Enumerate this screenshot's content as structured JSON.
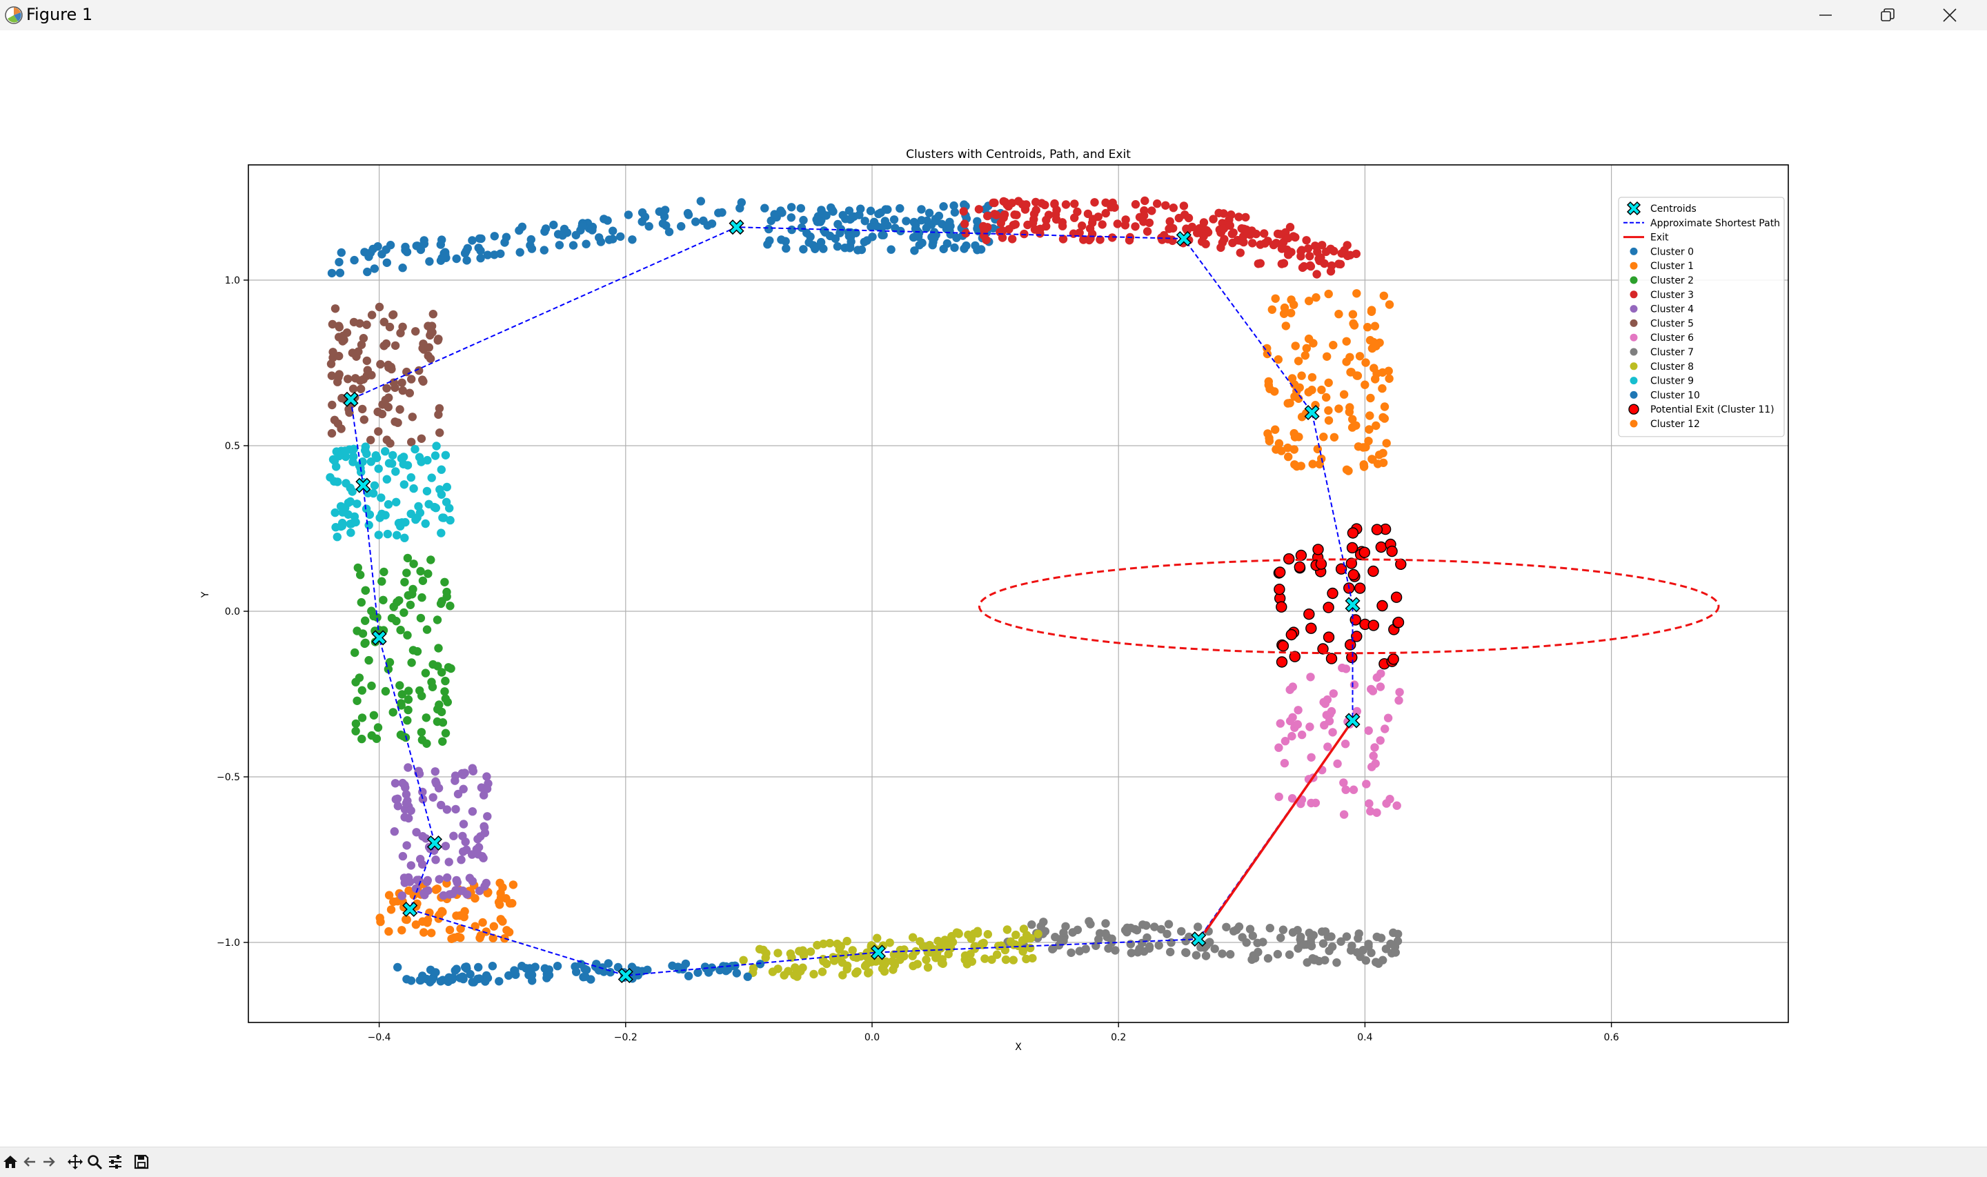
{
  "window": {
    "title": "Figure 1"
  },
  "toolbar": {
    "buttons": [
      {
        "icon": "home-icon"
      },
      {
        "icon": "back-icon"
      },
      {
        "icon": "forward-icon"
      },
      {
        "icon": "pan-icon"
      },
      {
        "icon": "zoom-icon"
      },
      {
        "icon": "configure-subplots-icon"
      },
      {
        "icon": "save-icon"
      }
    ]
  },
  "chart_data": {
    "type": "scatter",
    "title": "Clusters with Centroids, Path, and Exit",
    "xlabel": "X",
    "ylabel": "Y",
    "xlim": [
      -0.5,
      0.75
    ],
    "ylim": [
      -1.25,
      1.35
    ],
    "xticks": [
      -0.4,
      -0.2,
      0.0,
      0.2,
      0.4,
      0.6
    ],
    "xtick_labels": [
      "−0.4",
      "−0.2",
      "0.0",
      "0.2",
      "0.4",
      "0.6"
    ],
    "yticks": [
      -1.0,
      -0.5,
      0.0,
      0.5,
      1.0
    ],
    "ytick_labels": [
      "−1.0",
      "−0.5",
      "0.0",
      "0.5",
      "1.0"
    ],
    "grid": true,
    "legend_position": "top-right",
    "series": [
      {
        "name": "Cluster 0",
        "color": "#1f77b4",
        "x_range": [
          -0.08,
          0.1
        ],
        "y_range": [
          1.07,
          1.23
        ],
        "count": 160
      },
      {
        "name": "Cluster 1",
        "color": "#ff7f0e",
        "x_range": [
          -0.4,
          -0.29
        ],
        "y_range": [
          -0.99,
          -0.82
        ],
        "count": 80
      },
      {
        "name": "Cluster 2",
        "color": "#2ca02c",
        "x_range": [
          -0.42,
          -0.34
        ],
        "y_range": [
          -0.4,
          0.18
        ],
        "count": 110
      },
      {
        "name": "Cluster 3",
        "color": "#d62728",
        "x_range": [
          0.08,
          0.38
        ],
        "y_range": [
          0.97,
          1.23
        ],
        "count": 220
      },
      {
        "name": "Cluster 4",
        "color": "#9467bd",
        "x_range": [
          -0.39,
          -0.31
        ],
        "y_range": [
          -0.86,
          -0.47
        ],
        "count": 110
      },
      {
        "name": "Cluster 5",
        "color": "#8c564b",
        "x_range": [
          -0.44,
          -0.35
        ],
        "y_range": [
          0.5,
          0.92
        ],
        "count": 110
      },
      {
        "name": "Cluster 6",
        "color": "#e377c2",
        "x_range": [
          0.33,
          0.43
        ],
        "y_range": [
          -0.62,
          -0.17
        ],
        "count": 70
      },
      {
        "name": "Cluster 7",
        "color": "#7f7f7f",
        "x_range": [
          0.12,
          0.43
        ],
        "y_range": [
          -1.08,
          -0.79
        ],
        "count": 150
      },
      {
        "name": "Cluster 8",
        "color": "#bcbd22",
        "x_range": [
          -0.1,
          0.13
        ],
        "y_range": [
          -1.12,
          -0.94
        ],
        "count": 160
      },
      {
        "name": "Cluster 9",
        "color": "#17becf",
        "x_range": [
          -0.44,
          -0.34
        ],
        "y_range": [
          0.22,
          0.5
        ],
        "count": 110
      },
      {
        "name": "Cluster 10",
        "color": "#1f77b4",
        "x_range": [
          -0.43,
          -0.1
        ],
        "y_range": [
          -1.12,
          1.23
        ],
        "count": 220
      },
      {
        "name": "Potential Exit (Cluster 11)",
        "color": "#ff0000",
        "x_range": [
          0.33,
          0.43
        ],
        "y_range": [
          -0.17,
          0.27
        ],
        "count": 60
      },
      {
        "name": "Cluster 12",
        "color": "#ff7f0e",
        "x_range": [
          0.32,
          0.42
        ],
        "y_range": [
          0.42,
          0.96
        ],
        "count": 130
      }
    ],
    "centroids": {
      "name": "Centroids",
      "color": "#00e5ee",
      "points": [
        {
          "x": -0.11,
          "y": 1.16
        },
        {
          "x": 0.253,
          "y": 1.125
        },
        {
          "x": 0.357,
          "y": 0.6
        },
        {
          "x": 0.39,
          "y": 0.02
        },
        {
          "x": 0.39,
          "y": -0.33
        },
        {
          "x": 0.265,
          "y": -0.99
        },
        {
          "x": 0.005,
          "y": -1.03
        },
        {
          "x": -0.2,
          "y": -1.1
        },
        {
          "x": -0.375,
          "y": -0.9
        },
        {
          "x": -0.355,
          "y": -0.7
        },
        {
          "x": -0.4,
          "y": -0.08
        },
        {
          "x": -0.413,
          "y": 0.38
        },
        {
          "x": -0.423,
          "y": 0.64
        }
      ]
    },
    "path": {
      "name": "Approximate Shortest Path",
      "color": "#0000ff",
      "points": [
        {
          "x": -0.423,
          "y": 0.64
        },
        {
          "x": -0.413,
          "y": 0.38
        },
        {
          "x": -0.4,
          "y": -0.08
        },
        {
          "x": -0.355,
          "y": -0.7
        },
        {
          "x": -0.375,
          "y": -0.9
        },
        {
          "x": -0.2,
          "y": -1.1
        },
        {
          "x": 0.005,
          "y": -1.03
        },
        {
          "x": 0.265,
          "y": -0.99
        },
        {
          "x": 0.39,
          "y": -0.33
        },
        {
          "x": 0.39,
          "y": 0.02
        },
        {
          "x": 0.357,
          "y": 0.6
        },
        {
          "x": 0.253,
          "y": 1.125
        },
        {
          "x": -0.11,
          "y": 1.16
        },
        {
          "x": -0.423,
          "y": 0.64
        }
      ]
    },
    "exit": {
      "name": "Exit",
      "color": "#ee1111",
      "from": {
        "x": 0.39,
        "y": -0.33
      },
      "to": {
        "x": 0.27,
        "y": -0.97
      }
    },
    "exit_region": {
      "type": "ellipse",
      "center": {
        "x": 0.387,
        "y": 0.015
      },
      "half_width": 0.3,
      "half_height": 0.295,
      "color": "#ee1111"
    },
    "legend": [
      {
        "label": "Centroids",
        "marker": "x-marker",
        "color": "#00e5ee"
      },
      {
        "label": "Approximate Shortest Path",
        "marker": "dashed-line",
        "color": "#0000ff"
      },
      {
        "label": "Exit",
        "marker": "solid-line",
        "color": "#ee1111"
      },
      {
        "label": "Cluster 0",
        "marker": "dot",
        "color": "#1f77b4"
      },
      {
        "label": "Cluster 1",
        "marker": "dot",
        "color": "#ff7f0e"
      },
      {
        "label": "Cluster 2",
        "marker": "dot",
        "color": "#2ca02c"
      },
      {
        "label": "Cluster 3",
        "marker": "dot",
        "color": "#d62728"
      },
      {
        "label": "Cluster 4",
        "marker": "dot",
        "color": "#9467bd"
      },
      {
        "label": "Cluster 5",
        "marker": "dot",
        "color": "#8c564b"
      },
      {
        "label": "Cluster 6",
        "marker": "dot",
        "color": "#e377c2"
      },
      {
        "label": "Cluster 7",
        "marker": "dot",
        "color": "#7f7f7f"
      },
      {
        "label": "Cluster 8",
        "marker": "dot",
        "color": "#bcbd22"
      },
      {
        "label": "Cluster 9",
        "marker": "dot",
        "color": "#17becf"
      },
      {
        "label": "Cluster 10",
        "marker": "dot",
        "color": "#1f77b4"
      },
      {
        "label": "Potential Exit (Cluster 11)",
        "marker": "outlined-dot",
        "color": "#ff0000"
      },
      {
        "label": "Cluster 12",
        "marker": "dot",
        "color": "#ff7f0e"
      }
    ]
  }
}
